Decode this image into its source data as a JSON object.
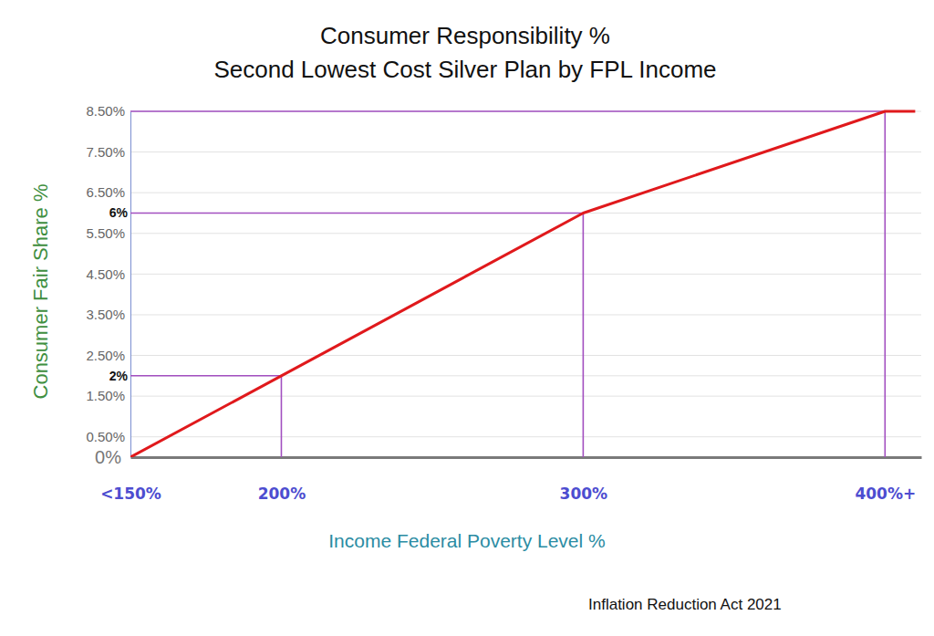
{
  "chart_data": {
    "type": "line",
    "title": [
      "Consumer Responsibility %",
      "Second Lowest Cost Silver Plan by FPL Income"
    ],
    "x_label": "Income Federal Poverty Level %",
    "y_label": "Consumer Fair Share %",
    "footnote": "Inflation Reduction Act 2021",
    "x": [
      150,
      200,
      300,
      400,
      410
    ],
    "series": [
      {
        "name": "Consumer Fair Share %",
        "color": "#e0191c",
        "values": [
          0,
          2,
          6,
          8.5,
          8.5
        ]
      }
    ],
    "xlim": [
      150,
      412
    ],
    "xticks": [
      {
        "value": 150,
        "label": "<150%"
      },
      {
        "value": 200,
        "label": "200%"
      },
      {
        "value": 300,
        "label": "300%"
      },
      {
        "value": 400,
        "label": "400%+"
      }
    ],
    "ylim": [
      0,
      8.5
    ],
    "yticks": [
      {
        "value": 0,
        "label": "0%"
      },
      {
        "value": 0.5,
        "label": "0.50%"
      },
      {
        "value": 1.5,
        "label": "1.50%"
      },
      {
        "value": 2,
        "label": "2%"
      },
      {
        "value": 2.5,
        "label": "2.50%"
      },
      {
        "value": 3.5,
        "label": "3.50%"
      },
      {
        "value": 4.5,
        "label": "4.50%"
      },
      {
        "value": 5.5,
        "label": "5.50%"
      },
      {
        "value": 6,
        "label": "6%"
      },
      {
        "value": 6.5,
        "label": "6.50%"
      },
      {
        "value": 7.5,
        "label": "7.50%"
      },
      {
        "value": 8.5,
        "label": "8.50%"
      }
    ],
    "guides": [
      {
        "x": 200,
        "y": 2
      },
      {
        "x": 300,
        "y": 6
      },
      {
        "x": 400,
        "y": 8.5
      }
    ],
    "grid": true
  }
}
